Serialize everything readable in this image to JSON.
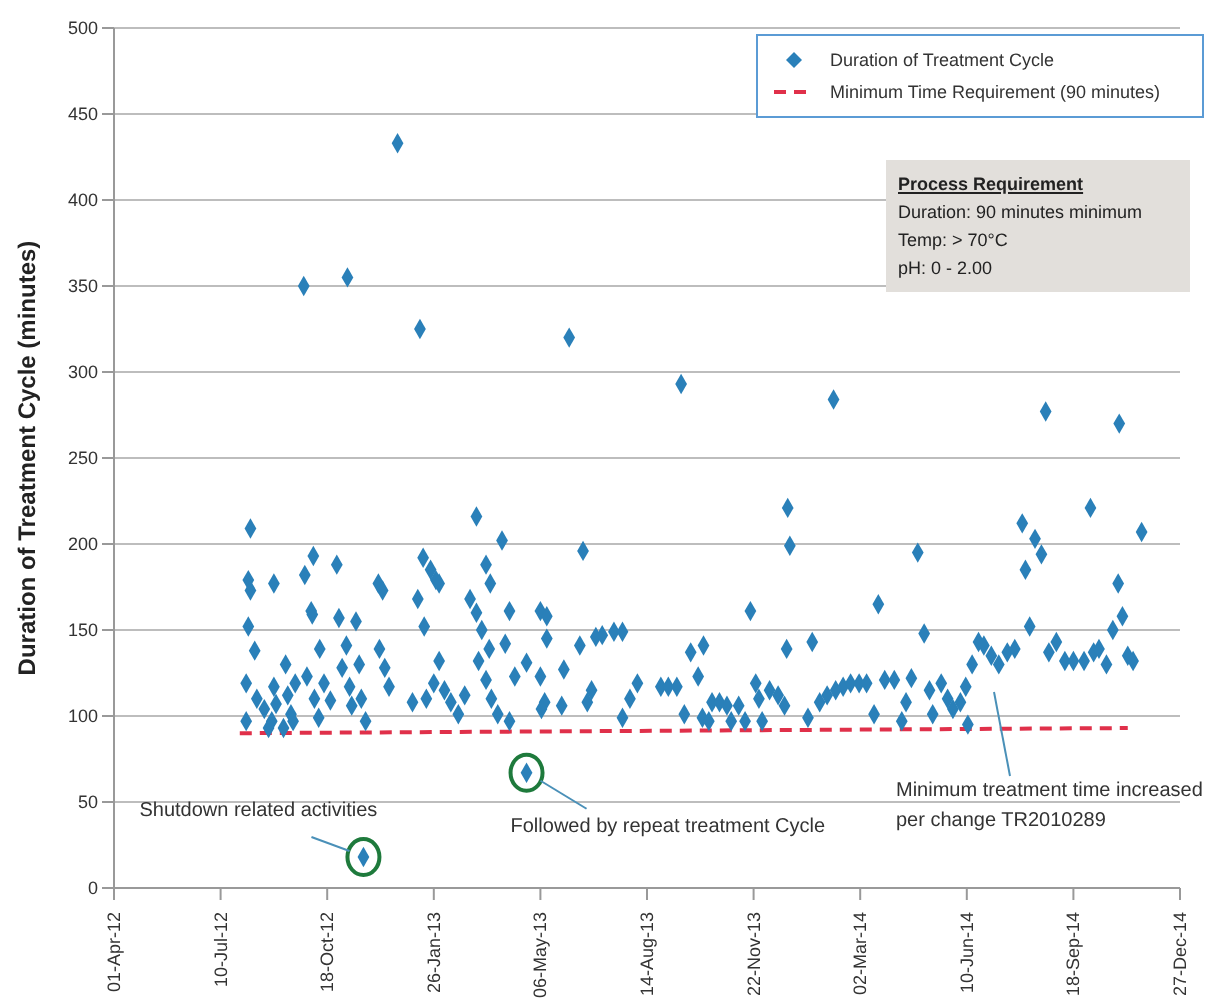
{
  "chart_data": {
    "type": "scatter",
    "ylabel": "Duration of Treatment Cycle (minutes)",
    "xlim": [
      "2012-04-01",
      "2014-12-27"
    ],
    "xticks": [
      {
        "value": "2012-04-01",
        "label": "01-Apr-12"
      },
      {
        "value": "2012-07-10",
        "label": "10-Jul-12"
      },
      {
        "value": "2012-10-18",
        "label": "18-Oct-12"
      },
      {
        "value": "2013-01-26",
        "label": "26-Jan-13"
      },
      {
        "value": "2013-05-06",
        "label": "06-May-13"
      },
      {
        "value": "2013-08-14",
        "label": "14-Aug-13"
      },
      {
        "value": "2013-11-22",
        "label": "22-Nov-13"
      },
      {
        "value": "2014-03-02",
        "label": "02-Mar-14"
      },
      {
        "value": "2014-06-10",
        "label": "10-Jun-14"
      },
      {
        "value": "2014-09-18",
        "label": "18-Sep-14"
      },
      {
        "value": "2014-12-27",
        "label": "27-Dec-14"
      }
    ],
    "ylim": [
      0,
      500
    ],
    "yticks": [
      0,
      50,
      100,
      150,
      200,
      250,
      300,
      350,
      400,
      450,
      500
    ],
    "grid": "y",
    "legend": "top right",
    "series": [
      {
        "name": "Duration of Treatment Cycle",
        "color": "#2a80b9",
        "marker": "diamond",
        "x": [
          "2012-08-07",
          "2012-08-05",
          "2012-08-07",
          "2012-08-05",
          "2012-08-11",
          "2012-08-03",
          "2012-08-03",
          "2012-08-13",
          "2012-08-20",
          "2012-08-27",
          "2012-08-29",
          "2012-08-24",
          "2012-08-31",
          "2012-09-07",
          "2012-08-29",
          "2012-09-09",
          "2012-09-11",
          "2012-09-14",
          "2012-09-18",
          "2012-09-16",
          "2012-09-27",
          "2012-10-05",
          "2012-10-03",
          "2012-10-04",
          "2012-09-29",
          "2012-10-06",
          "2012-10-10",
          "2012-10-11",
          "2012-10-15",
          "2012-10-21",
          "2012-10-27",
          "2012-10-29",
          "2012-11-01",
          "2012-11-05",
          "2012-11-08",
          "2012-11-10",
          "2012-11-14",
          "2012-11-17",
          "2012-11-19",
          "2012-11-23",
          "2012-11-21",
          "2012-12-05",
          "2012-12-09",
          "2012-12-06",
          "2012-12-11",
          "2012-12-15",
          "2013-01-06",
          "2013-01-11",
          "2013-01-16",
          "2013-01-17",
          "2013-01-23",
          "2013-01-28",
          "2013-01-31",
          "2013-01-19",
          "2013-01-26",
          "2013-01-31",
          "2013-02-05",
          "2013-02-11",
          "2013-02-18",
          "2013-02-24",
          "2013-03-01",
          "2013-03-07",
          "2013-03-07",
          "2013-03-12",
          "2013-03-16",
          "2013-03-20",
          "2013-03-09",
          "2013-03-16",
          "2013-03-21",
          "2013-03-19",
          "2013-03-31",
          "2013-04-03",
          "2013-04-07",
          "2013-03-27",
          "2013-04-07",
          "2013-04-12",
          "2013-04-23",
          "2013-04-23",
          "2013-05-06",
          "2013-05-12",
          "2013-05-12",
          "2013-05-06",
          "2013-05-10",
          "2013-05-07",
          "2013-05-28",
          "2013-05-26",
          "2013-06-15",
          "2013-06-12",
          "2013-06-19",
          "2013-06-23",
          "2013-06-27",
          "2013-07-03",
          "2013-07-14",
          "2013-07-22",
          "2013-07-22",
          "2013-07-29",
          "2013-08-05",
          "2013-08-27",
          "2013-09-03",
          "2013-09-11",
          "2013-09-18",
          "2013-09-24",
          "2013-10-01",
          "2013-10-06",
          "2013-10-05",
          "2013-10-11",
          "2013-10-14",
          "2013-10-21",
          "2013-10-28",
          "2013-11-01",
          "2013-11-08",
          "2013-11-14",
          "2013-11-19",
          "2013-11-24",
          "2013-11-27",
          "2013-11-30",
          "2013-12-07",
          "2013-12-15",
          "2013-12-21",
          "2013-12-24",
          "2013-12-26",
          "2013-12-23",
          "2014-01-12",
          "2014-01-16",
          "2014-01-23",
          "2014-01-30",
          "2014-02-07",
          "2014-02-14",
          "2014-02-21",
          "2014-03-01",
          "2014-03-08",
          "2014-03-15",
          "2014-03-19",
          "2014-03-25",
          "2014-04-03",
          "2014-04-10",
          "2014-04-14",
          "2014-04-19",
          "2014-04-25",
          "2014-05-01",
          "2014-05-06",
          "2014-05-09",
          "2014-05-17",
          "2014-05-23",
          "2014-05-28",
          "2014-06-04",
          "2014-06-11",
          "2014-06-09",
          "2014-06-15",
          "2014-06-21",
          "2014-06-26",
          "2014-07-03",
          "2014-07-10",
          "2014-07-18",
          "2014-07-25",
          "2014-08-01",
          "2014-08-04",
          "2014-08-08",
          "2014-08-13",
          "2014-08-19",
          "2014-08-26",
          "2014-09-02",
          "2014-09-10",
          "2014-09-18",
          "2014-09-28",
          "2014-10-04",
          "2014-10-07",
          "2014-10-12",
          "2014-10-19",
          "2014-10-25",
          "2014-10-30",
          "2014-11-03",
          "2014-11-08",
          "2014-11-13",
          "2014-11-21",
          "2012-09-26",
          "2012-11-06",
          "2012-12-23",
          "2013-01-13",
          "2013-06-02",
          "2013-09-15",
          "2014-02-05",
          "2014-08-23",
          "2014-10-31"
        ],
        "values": [
          209,
          179,
          173,
          152,
          138,
          119,
          97,
          110,
          104,
          97,
          117,
          93,
          107,
          93,
          177,
          130,
          112,
          101,
          119,
          97,
          182,
          193,
          161,
          159,
          123,
          110,
          99,
          139,
          119,
          109,
          188,
          157,
          128,
          141,
          117,
          106,
          155,
          130,
          110,
          97,
          18,
          177,
          173,
          139,
          128,
          117,
          108,
          168,
          192,
          152,
          185,
          179,
          177,
          110,
          119,
          132,
          115,
          108,
          101,
          112,
          168,
          160,
          216,
          150,
          188,
          177,
          132,
          121,
          110,
          139,
          202,
          142,
          161,
          101,
          97,
          123,
          131,
          67,
          161,
          158,
          145,
          123,
          108,
          104,
          127,
          106,
          196,
          141,
          108,
          115,
          146,
          147,
          149,
          149,
          99,
          110,
          119,
          117,
          117,
          117,
          101,
          137,
          123,
          141,
          99,
          97,
          108,
          108,
          106,
          97,
          106,
          97,
          161,
          119,
          110,
          97,
          115,
          112,
          106,
          221,
          199,
          139,
          99,
          143,
          108,
          112,
          115,
          117,
          119,
          119,
          119,
          101,
          165,
          121,
          121,
          97,
          108,
          122,
          195,
          148,
          115,
          101,
          119,
          110,
          104,
          108,
          95,
          117,
          130,
          143,
          141,
          135,
          130,
          137,
          139,
          212,
          185,
          152,
          203,
          194,
          137,
          143,
          132,
          132,
          132,
          221,
          137,
          139,
          130,
          150,
          177,
          158,
          135,
          132,
          207,
          350,
          355,
          433,
          325,
          320,
          293,
          284,
          277,
          270
        ]
      },
      {
        "type": "line",
        "name": "Minimum Time Requirement (90 minutes)",
        "color": "#e0304a",
        "line_style": "dashed",
        "marker": "none",
        "x": [
          "2012-07-28",
          "2014-11-08"
        ],
        "values": [
          90,
          93
        ]
      }
    ],
    "annotations": [
      {
        "text": "Shutdown related activities",
        "x": "2012-11-21",
        "y": 18
      },
      {
        "text": "Followed by repeat treatment Cycle",
        "x": "2013-04-23",
        "y": 67
      },
      "Minimum treatment time increased per change TR2010289",
      "Process Requirement",
      "Duration: 90 minutes minimum",
      "Temp:  > 70°C",
      "pH:  0 - 2.00"
    ]
  }
}
